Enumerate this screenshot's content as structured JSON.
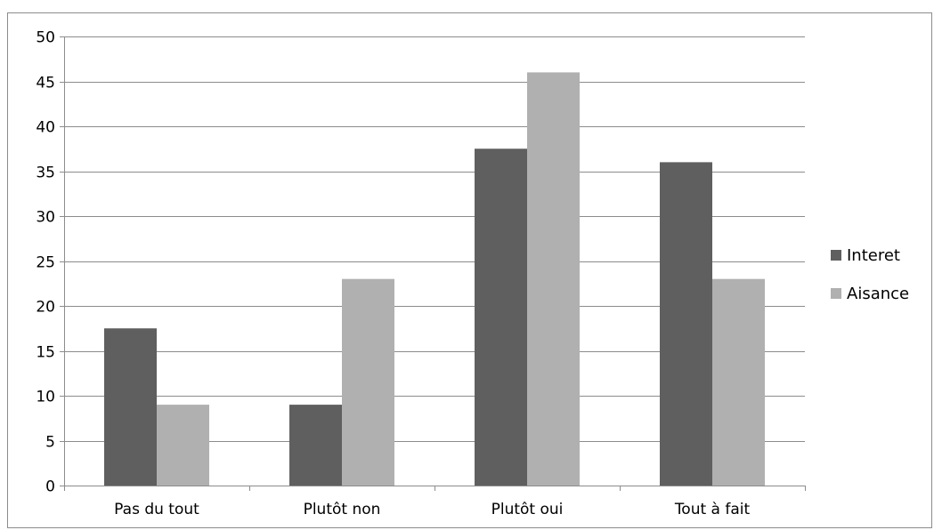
{
  "chart_data": {
    "type": "bar",
    "title": "",
    "xlabel": "",
    "ylabel": "",
    "categories": [
      "Pas du tout",
      "Plutôt non",
      "Plutôt oui",
      "Tout à fait"
    ],
    "series": [
      {
        "name": "Interet",
        "values": [
          17.5,
          9,
          37.5,
          36
        ],
        "color": "#5f5f5f"
      },
      {
        "name": "Aisance",
        "values": [
          9,
          23,
          46,
          23
        ],
        "color": "#b0b0b0"
      }
    ],
    "ylim": [
      0,
      50
    ],
    "yticks": [
      0,
      5,
      10,
      15,
      20,
      25,
      30,
      35,
      40,
      45,
      50
    ],
    "grid": true,
    "gridline_color": "#8c8c8c",
    "legend_position": "right"
  }
}
